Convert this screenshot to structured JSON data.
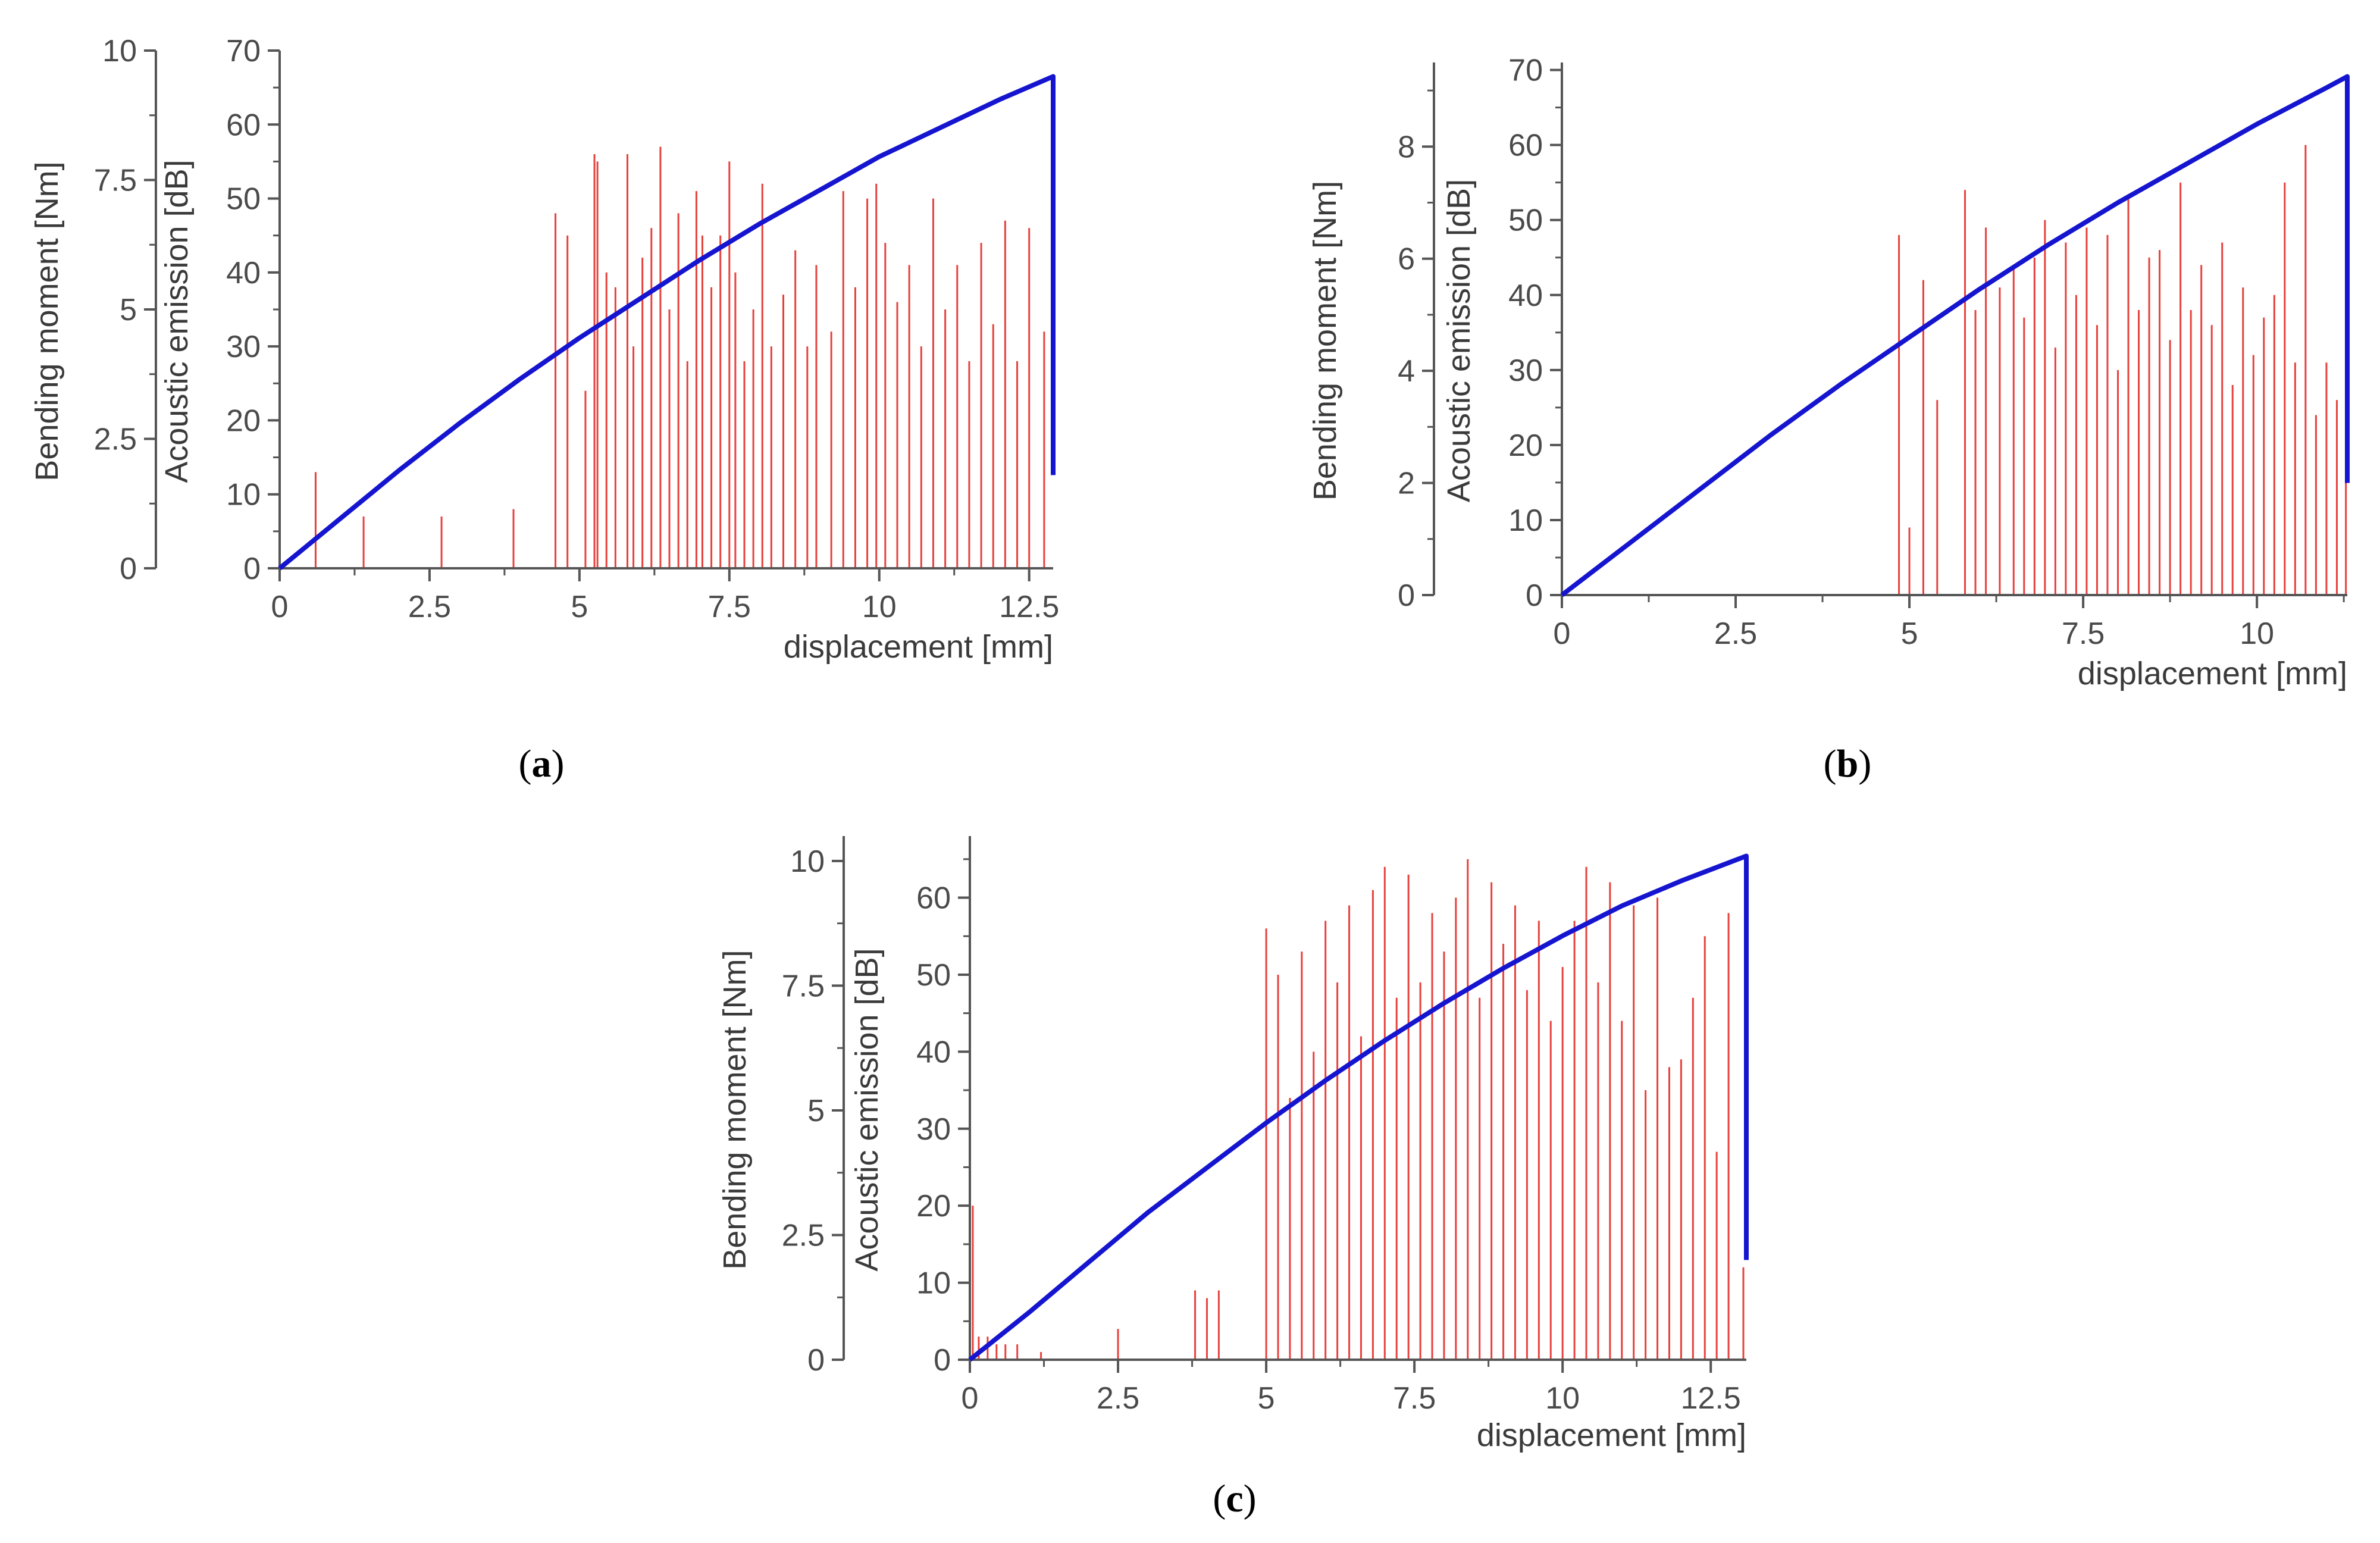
{
  "colors": {
    "moment_line": "#1515d0",
    "ae_hits": "#e3201b",
    "axis": "#555555"
  },
  "chart_data": [
    {
      "id": "a",
      "type": "line+bar",
      "panel_label": "a",
      "xlabel": "displacement [mm]",
      "ylabel_left": "Bending moment [Nm]",
      "ylabel_right": "Acoustic emission [dB]",
      "xlim": [
        0,
        12.9
      ],
      "x_ticks": [
        "0",
        "2.5",
        "5",
        "7.5",
        "10",
        "12.5"
      ],
      "x_tick_values": [
        0,
        2.5,
        5,
        7.5,
        10,
        12.5
      ],
      "moment_ylim": [
        0,
        10
      ],
      "moment_ticks": [
        "0",
        "2.5",
        "5",
        "7.5",
        "10"
      ],
      "moment_tick_values": [
        0,
        2.5,
        5,
        7.5,
        10
      ],
      "ae_ylim": [
        0,
        70
      ],
      "ae_ticks": [
        "0",
        "10",
        "20",
        "30",
        "40",
        "50",
        "60",
        "70"
      ],
      "ae_tick_values": [
        0,
        10,
        20,
        30,
        40,
        50,
        60,
        70
      ],
      "moment_series": {
        "name": "Bending moment",
        "x": [
          0,
          1,
          2,
          3,
          4,
          5,
          6,
          7,
          8,
          9,
          10,
          11,
          12,
          12.9,
          12.9
        ],
        "y": [
          0,
          0.95,
          1.9,
          2.8,
          3.65,
          4.45,
          5.2,
          5.95,
          6.65,
          7.3,
          7.95,
          8.5,
          9.05,
          9.5,
          1.8
        ]
      },
      "ae_series": {
        "name": "Acoustic emission",
        "x": [
          0.6,
          1.4,
          2.7,
          3.9,
          4.6,
          4.8,
          5.1,
          5.25,
          5.3,
          5.45,
          5.6,
          5.8,
          5.9,
          6.05,
          6.2,
          6.35,
          6.5,
          6.65,
          6.8,
          6.95,
          7.05,
          7.2,
          7.35,
          7.5,
          7.6,
          7.75,
          7.9,
          8.05,
          8.2,
          8.4,
          8.6,
          8.8,
          8.95,
          9.2,
          9.4,
          9.6,
          9.8,
          9.95,
          10.1,
          10.3,
          10.5,
          10.7,
          10.9,
          11.1,
          11.3,
          11.5,
          11.7,
          11.9,
          12.1,
          12.3,
          12.5,
          12.75
        ],
        "y": [
          13,
          7,
          7,
          8,
          48,
          45,
          24,
          56,
          55,
          40,
          38,
          56,
          30,
          42,
          46,
          57,
          35,
          48,
          28,
          51,
          45,
          38,
          45,
          55,
          40,
          28,
          35,
          52,
          30,
          37,
          43,
          30,
          41,
          32,
          51,
          38,
          50,
          52,
          44,
          36,
          41,
          30,
          50,
          35,
          41,
          28,
          44,
          33,
          47,
          28,
          46,
          32
        ]
      }
    },
    {
      "id": "b",
      "type": "line+bar",
      "panel_label": "b",
      "xlabel": "displacement [mm]",
      "ylabel_left": "Bending moment [Nm]",
      "ylabel_right": "Acoustic emission [dB]",
      "xlim": [
        0,
        11.3
      ],
      "x_ticks": [
        "0",
        "2.5",
        "5",
        "7.5",
        "10"
      ],
      "x_tick_values": [
        0,
        2.5,
        5,
        7.5,
        10
      ],
      "moment_ylim": [
        0,
        9.5
      ],
      "moment_ticks": [
        "0",
        "2",
        "4",
        "6",
        "8"
      ],
      "moment_tick_values": [
        0,
        2,
        4,
        6,
        8
      ],
      "ae_ylim": [
        0,
        71
      ],
      "ae_ticks": [
        "0",
        "10",
        "20",
        "30",
        "40",
        "50",
        "60",
        "70"
      ],
      "ae_tick_values": [
        0,
        10,
        20,
        30,
        40,
        50,
        60,
        70
      ],
      "moment_series": {
        "name": "Bending moment",
        "x": [
          0,
          1,
          2,
          3,
          4,
          5,
          6,
          7,
          8,
          9,
          10,
          11,
          11.3,
          11.3
        ],
        "y": [
          0,
          0.95,
          1.9,
          2.85,
          3.75,
          4.6,
          5.45,
          6.25,
          7.0,
          7.7,
          8.4,
          9.05,
          9.25,
          2.0
        ]
      },
      "ae_series": {
        "name": "Acoustic emission",
        "x": [
          4.85,
          5.0,
          5.2,
          5.4,
          5.8,
          5.95,
          6.1,
          6.3,
          6.5,
          6.65,
          6.8,
          6.95,
          7.1,
          7.25,
          7.4,
          7.55,
          7.7,
          7.85,
          8.0,
          8.15,
          8.3,
          8.45,
          8.6,
          8.75,
          8.9,
          9.05,
          9.2,
          9.35,
          9.5,
          9.65,
          9.8,
          9.95,
          10.1,
          10.25,
          10.4,
          10.55,
          10.7,
          10.85,
          11.0,
          11.15,
          11.28
        ],
        "y": [
          48,
          9,
          42,
          26,
          54,
          38,
          49,
          41,
          44,
          37,
          45,
          50,
          33,
          47,
          40,
          49,
          36,
          48,
          30,
          53,
          38,
          45,
          46,
          34,
          55,
          38,
          44,
          36,
          47,
          28,
          41,
          32,
          37,
          40,
          55,
          31,
          60,
          24,
          31,
          26,
          36
        ]
      }
    },
    {
      "id": "c",
      "type": "line+bar",
      "panel_label": "c",
      "xlabel": "displacement [mm]",
      "ylabel_left": "Bending moment [Nm]",
      "ylabel_right": "Acoustic emission [dB]",
      "xlim": [
        0,
        13.1
      ],
      "x_ticks": [
        "0",
        "2.5",
        "5",
        "7.5",
        "10",
        "12.5"
      ],
      "x_tick_values": [
        0,
        2.5,
        5,
        7.5,
        10,
        12.5
      ],
      "moment_ylim": [
        0,
        10.5
      ],
      "moment_ticks": [
        "0",
        "2.5",
        "5",
        "7.5",
        "10"
      ],
      "moment_tick_values": [
        0,
        2.5,
        5,
        7.5,
        10
      ],
      "ae_ylim": [
        0,
        68
      ],
      "ae_ticks": [
        "0",
        "10",
        "20",
        "30",
        "40",
        "50",
        "60"
      ],
      "ae_tick_values": [
        0,
        10,
        20,
        30,
        40,
        50,
        60
      ],
      "moment_series": {
        "name": "Bending moment",
        "x": [
          0,
          1,
          2,
          3,
          4,
          5,
          6,
          7,
          8,
          9,
          10,
          11,
          12,
          13.1,
          13.1
        ],
        "y": [
          0,
          0.95,
          1.95,
          2.95,
          3.85,
          4.75,
          5.6,
          6.4,
          7.15,
          7.85,
          8.5,
          9.1,
          9.6,
          10.1,
          2.0
        ]
      },
      "ae_series": {
        "name": "Acoustic emission",
        "x": [
          0.05,
          0.15,
          0.3,
          0.45,
          0.6,
          0.8,
          1.2,
          2.5,
          3.8,
          4.0,
          4.2,
          5.0,
          5.2,
          5.4,
          5.6,
          5.8,
          6.0,
          6.2,
          6.4,
          6.6,
          6.8,
          7.0,
          7.2,
          7.4,
          7.6,
          7.8,
          8.0,
          8.2,
          8.4,
          8.6,
          8.8,
          9.0,
          9.2,
          9.4,
          9.6,
          9.8,
          10.0,
          10.2,
          10.4,
          10.6,
          10.8,
          11.0,
          11.2,
          11.4,
          11.6,
          11.8,
          12.0,
          12.2,
          12.4,
          12.6,
          12.8,
          13.05
        ],
        "y": [
          20,
          3,
          3,
          2,
          2,
          2,
          1,
          4,
          9,
          8,
          9,
          56,
          50,
          34,
          53,
          40,
          57,
          49,
          59,
          42,
          61,
          64,
          47,
          63,
          49,
          58,
          53,
          60,
          65,
          47,
          62,
          54,
          59,
          48,
          57,
          44,
          51,
          57,
          64,
          49,
          62,
          44,
          59,
          35,
          60,
          38,
          39,
          47,
          55,
          27,
          58,
          12
        ]
      }
    }
  ]
}
